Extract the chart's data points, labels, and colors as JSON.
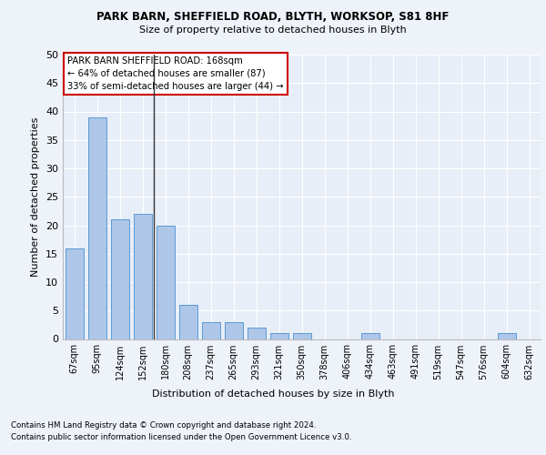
{
  "title1": "PARK BARN, SHEFFIELD ROAD, BLYTH, WORKSOP, S81 8HF",
  "title2": "Size of property relative to detached houses in Blyth",
  "xlabel": "Distribution of detached houses by size in Blyth",
  "ylabel": "Number of detached properties",
  "footnote1": "Contains HM Land Registry data © Crown copyright and database right 2024.",
  "footnote2": "Contains public sector information licensed under the Open Government Licence v3.0.",
  "annotation_title": "PARK BARN SHEFFIELD ROAD: 168sqm",
  "annotation_line1": "← 64% of detached houses are smaller (87)",
  "annotation_line2": "33% of semi-detached houses are larger (44) →",
  "bar_color": "#aec6e8",
  "bar_edge_color": "#5b9bd5",
  "vline_color": "#333333",
  "annotation_box_color": "#ffffff",
  "annotation_box_edge": "#cc0000",
  "categories": [
    "67sqm",
    "95sqm",
    "124sqm",
    "152sqm",
    "180sqm",
    "208sqm",
    "237sqm",
    "265sqm",
    "293sqm",
    "321sqm",
    "350sqm",
    "378sqm",
    "406sqm",
    "434sqm",
    "463sqm",
    "491sqm",
    "519sqm",
    "547sqm",
    "576sqm",
    "604sqm",
    "632sqm"
  ],
  "values": [
    16,
    39,
    21,
    22,
    20,
    6,
    3,
    3,
    2,
    1,
    1,
    0,
    0,
    1,
    0,
    0,
    0,
    0,
    0,
    1,
    0
  ],
  "vline_x": 3.5,
  "ylim": [
    0,
    50
  ],
  "yticks": [
    0,
    5,
    10,
    15,
    20,
    25,
    30,
    35,
    40,
    45,
    50
  ],
  "background_color": "#eef2f9",
  "plot_bg_color": "#e8eef7"
}
